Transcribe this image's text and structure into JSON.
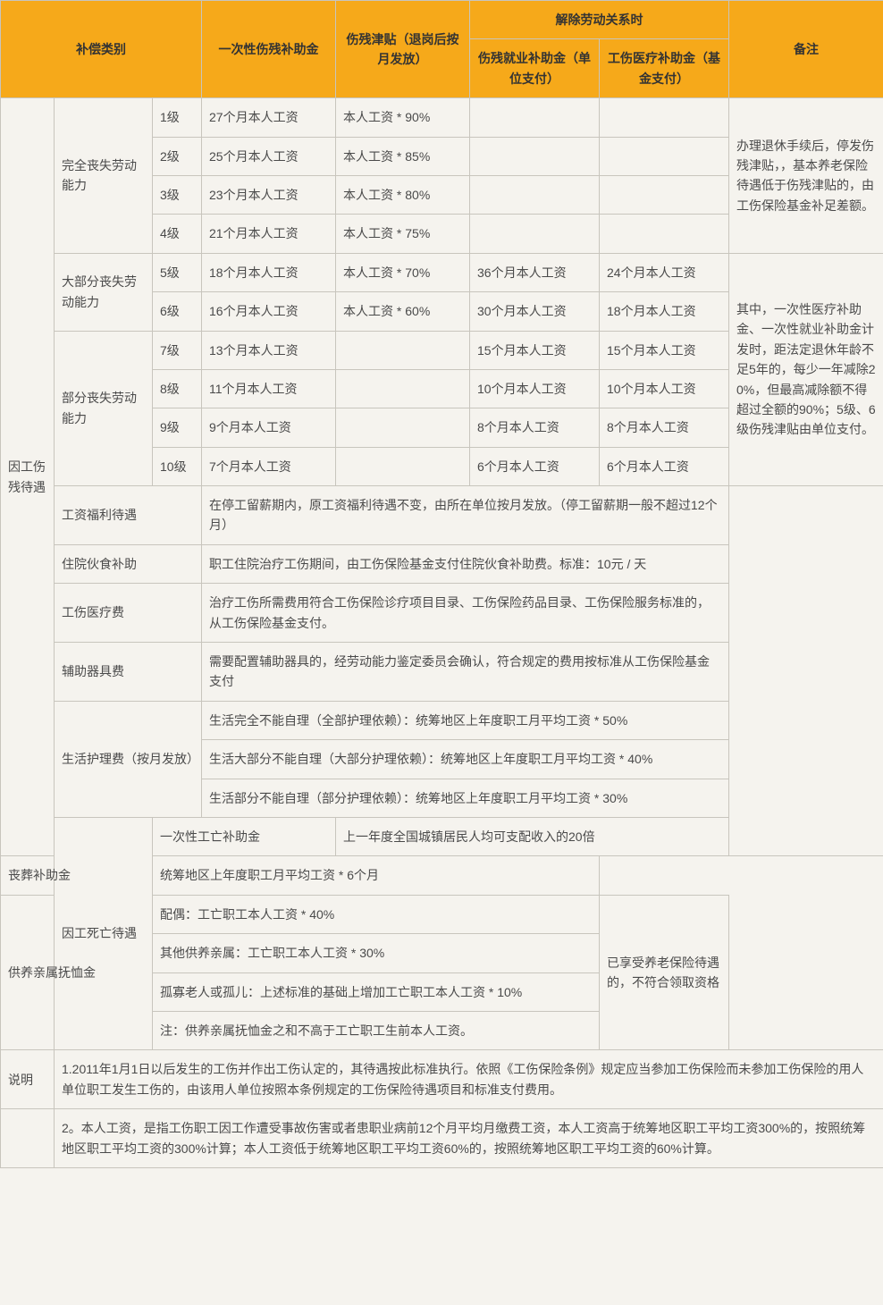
{
  "header": {
    "category": "补偿类别",
    "one_time_subsidy": "一次性伤残补助金",
    "disability_allowance": "伤残津贴（退岗后按月发放）",
    "termination": "解除劳动关系时",
    "employment_subsidy": "伤残就业补助金（单位支付）",
    "medical_subsidy": "工伤医疗补助金（基金支付）",
    "remarks": "备注"
  },
  "section1": {
    "title": "因工伤残待遇",
    "group_full": "完全丧失劳动能力",
    "group_most": "大部分丧失劳动能力",
    "group_part": "部分丧失劳动能力",
    "lvl": {
      "l1": "1级",
      "l2": "2级",
      "l3": "3级",
      "l4": "4级",
      "l5": "5级",
      "l6": "6级",
      "l7": "7级",
      "l8": "8级",
      "l9": "9级",
      "l10": "10级"
    },
    "sub": {
      "l1": "27个月本人工资",
      "l2": "25个月本人工资",
      "l3": "23个月本人工资",
      "l4": "21个月本人工资",
      "l5": "18个月本人工资",
      "l6": "16个月本人工资",
      "l7": "13个月本人工资",
      "l8": "11个月本人工资",
      "l9": "9个月本人工资",
      "l10": "7个月本人工资"
    },
    "allow": {
      "l1": "本人工资 * 90%",
      "l2": "本人工资 * 85%",
      "l3": "本人工资 * 80%",
      "l4": "本人工资 * 75%",
      "l5": "本人工资 * 70%",
      "l6": "本人工资 * 60%"
    },
    "emp": {
      "l5": "36个月本人工资",
      "l6": "30个月本人工资",
      "l7": "15个月本人工资",
      "l8": "10个月本人工资",
      "l9": "8个月本人工资",
      "l10": "6个月本人工资"
    },
    "med": {
      "l5": "24个月本人工资",
      "l6": "18个月本人工资",
      "l7": "15个月本人工资",
      "l8": "10个月本人工资",
      "l9": "8个月本人工资",
      "l10": "6个月本人工资"
    },
    "remark1": "办理退休手续后，停发伤残津贴，，基本养老保险待遇低于伤残津贴的，由工伤保险基金补足差额。",
    "remark2": "其中，一次性医疗补助金、一次性就业补助金计发时，距法定退休年龄不足5年的，每少一年减除20%，但最高减除额不得超过全额的90%；5级、6级伤残津贴由单位支付。",
    "wage_label": "工资福利待遇",
    "wage_text": "在停工留薪期内，原工资福利待遇不变，由所在单位按月发放。（停工留薪期一般不超过12个月）",
    "hospital_label": "住院伙食补助",
    "hospital_text": "职工住院治疗工伤期间，由工伤保险基金支付住院伙食补助费。标准：10元 / 天",
    "medfee_label": "工伤医疗费",
    "medfee_text": "治疗工伤所需费用符合工伤保险诊疗项目目录、工伤保险药品目录、工伤保险服务标准的，从工伤保险基金支付。",
    "aux_label": "辅助器具费",
    "aux_text": "需要配置辅助器具的，经劳动能力鉴定委员会确认，符合规定的费用按标准从工伤保险基金支付",
    "care_label": "生活护理费（按月发放）",
    "care1": "生活完全不能自理（全部护理依赖）：统筹地区上年度职工月平均工资 * 50%",
    "care2": "生活大部分不能自理（大部分护理依赖）：统筹地区上年度职工月平均工资 * 40%",
    "care3": "生活部分不能自理（部分护理依赖）：统筹地区上年度职工月平均工资 * 30%"
  },
  "section2": {
    "title": "因工死亡待遇",
    "one_label": "一次性工亡补助金",
    "one_text": "上一年度全国城镇居民人均可支配收入的20倍",
    "funeral_label": "丧葬补助金",
    "funeral_text": "统筹地区上年度职工月平均工资 * 6个月",
    "dep_label": "供养亲属抚恤金",
    "dep1": "配偶：工亡职工本人工资 * 40%",
    "dep2": "其他供养亲属：工亡职工本人工资 * 30%",
    "dep3": "孤寡老人或孤儿：上述标准的基础上增加工亡职工本人工资 * 10%",
    "dep4": "注：供养亲属抚恤金之和不高于工亡职工生前本人工资。",
    "remark": "已享受养老保险待遇的，不符合领取资格"
  },
  "notes": {
    "label": "说明",
    "note1": "1.2011年1月1日以后发生的工伤并作出工伤认定的，其待遇按此标准执行。依照《工伤保险条例》规定应当参加工伤保险而未参加工伤保险的用人单位职工发生工伤的，由该用人单位按照本条例规定的工伤保险待遇项目和标准支付费用。",
    "note2": "2。本人工资，是指工伤职工因工作遭受事故伤害或者患职业病前12个月平均月缴费工资，本人工资高于统筹地区职工平均工资300%的，按照统筹地区职工平均工资的300%计算；本人工资低于统筹地区职工平均工资60%的，按照统筹地区职工平均工资的60%计算。"
  },
  "style": {
    "header_bg": "#f6a91a",
    "border": "#c8c5bd",
    "page_bg": "#f5f3ee",
    "text": "#4a4a4a",
    "font_size": 14
  }
}
